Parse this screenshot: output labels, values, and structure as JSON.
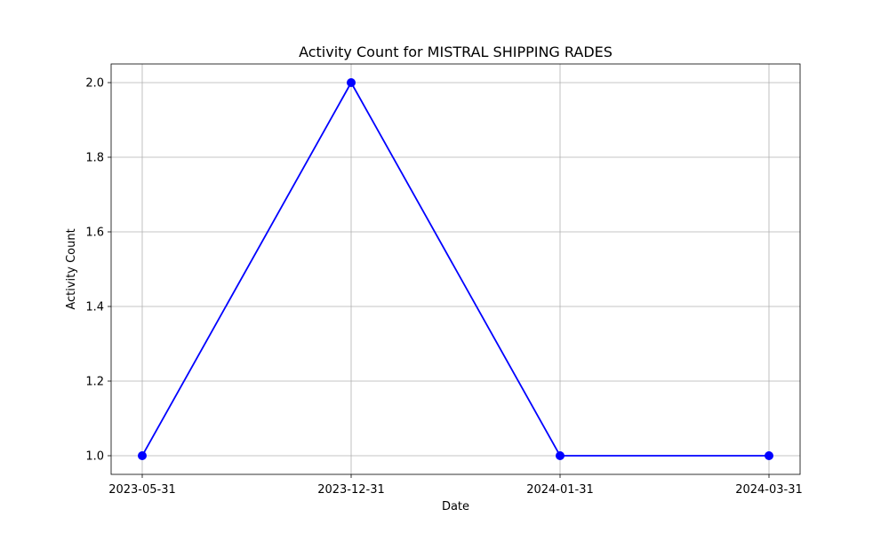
{
  "chart_data": {
    "type": "line",
    "title": "Activity Count for MISTRAL SHIPPING RADES",
    "xlabel": "Date",
    "ylabel": "Activity Count",
    "categories": [
      "2023-05-31",
      "2023-12-31",
      "2024-01-31",
      "2024-03-31"
    ],
    "series": [
      {
        "values": [
          1,
          2,
          1,
          1
        ],
        "color": "#0000ff",
        "marker": "circle"
      }
    ],
    "ylim": [
      0.95,
      2.05
    ],
    "yticks": [
      "1.0",
      "1.2",
      "1.4",
      "1.6",
      "1.8",
      "2.0"
    ],
    "grid": true,
    "legend": "none"
  }
}
